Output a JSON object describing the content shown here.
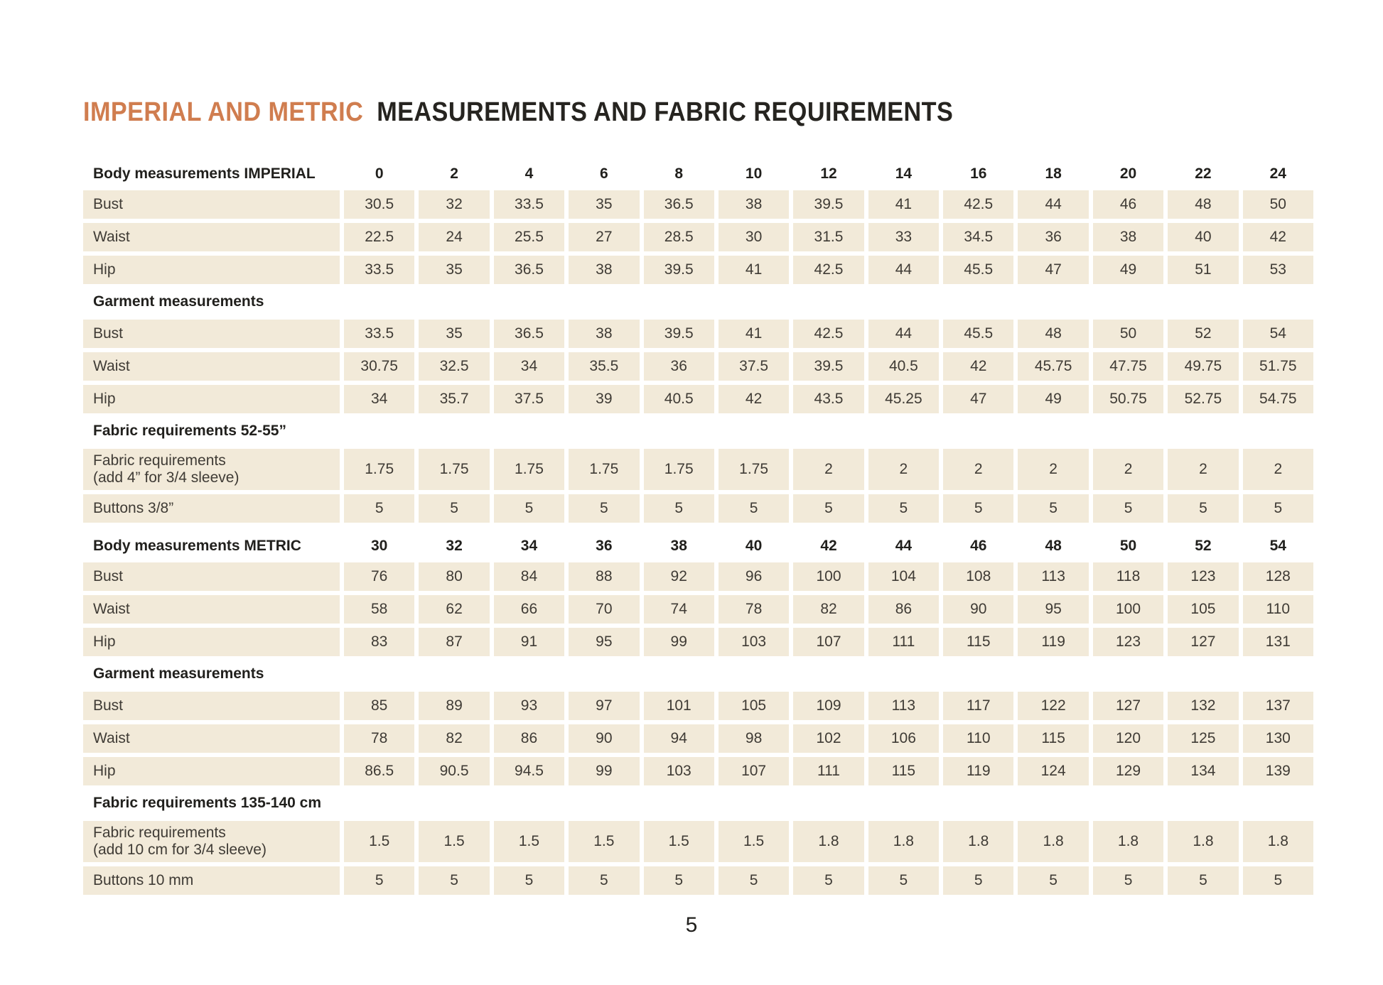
{
  "page": {
    "title_accent": "IMPERIAL AND METRIC",
    "title_rest": "MEASUREMENTS AND FABRIC REQUIREMENTS",
    "page_number": "5"
  },
  "colors": {
    "accent_orange": "#d07d4f",
    "cell_beige": "#f2ead9",
    "text_dark": "#21201d"
  },
  "table": {
    "blocks": [
      {
        "type": "cols",
        "label": "Body measurements IMPERIAL",
        "values": [
          "0",
          "2",
          "4",
          "6",
          "8",
          "10",
          "12",
          "14",
          "16",
          "18",
          "20",
          "22",
          "24"
        ]
      },
      {
        "type": "row",
        "label": "Bust",
        "values": [
          "30.5",
          "32",
          "33.5",
          "35",
          "36.5",
          "38",
          "39.5",
          "41",
          "42.5",
          "44",
          "46",
          "48",
          "50"
        ]
      },
      {
        "type": "row",
        "label": "Waist",
        "values": [
          "22.5",
          "24",
          "25.5",
          "27",
          "28.5",
          "30",
          "31.5",
          "33",
          "34.5",
          "36",
          "38",
          "40",
          "42"
        ]
      },
      {
        "type": "row",
        "label": "Hip",
        "values": [
          "33.5",
          "35",
          "36.5",
          "38",
          "39.5",
          "41",
          "42.5",
          "44",
          "45.5",
          "47",
          "49",
          "51",
          "53"
        ]
      },
      {
        "type": "title",
        "label": "Garment measurements"
      },
      {
        "type": "row",
        "label": "Bust",
        "values": [
          "33.5",
          "35",
          "36.5",
          "38",
          "39.5",
          "41",
          "42.5",
          "44",
          "45.5",
          "48",
          "50",
          "52",
          "54"
        ]
      },
      {
        "type": "row",
        "label": "Waist",
        "values": [
          "30.75",
          "32.5",
          "34",
          "35.5",
          "36",
          "37.5",
          "39.5",
          "40.5",
          "42",
          "45.75",
          "47.75",
          "49.75",
          "51.75"
        ]
      },
      {
        "type": "row",
        "label": "Hip",
        "values": [
          "34",
          "35.7",
          "37.5",
          "39",
          "40.5",
          "42",
          "43.5",
          "45.25",
          "47",
          "49",
          "50.75",
          "52.75",
          "54.75"
        ]
      },
      {
        "type": "title",
        "label": "Fabric requirements 52-55”"
      },
      {
        "type": "row",
        "label": "Fabric requirements",
        "label2": "(add 4” for 3/4 sleeve)",
        "tall": true,
        "values": [
          "1.75",
          "1.75",
          "1.75",
          "1.75",
          "1.75",
          "1.75",
          "2",
          "2",
          "2",
          "2",
          "2",
          "2",
          "2"
        ]
      },
      {
        "type": "row",
        "label": "Buttons 3/8”",
        "values": [
          "5",
          "5",
          "5",
          "5",
          "5",
          "5",
          "5",
          "5",
          "5",
          "5",
          "5",
          "5",
          "5"
        ]
      },
      {
        "type": "cols",
        "label": "Body measurements METRIC",
        "gap_before": true,
        "values": [
          "30",
          "32",
          "34",
          "36",
          "38",
          "40",
          "42",
          "44",
          "46",
          "48",
          "50",
          "52",
          "54"
        ]
      },
      {
        "type": "row",
        "label": "Bust",
        "values": [
          "76",
          "80",
          "84",
          "88",
          "92",
          "96",
          "100",
          "104",
          "108",
          "113",
          "118",
          "123",
          "128"
        ]
      },
      {
        "type": "row",
        "label": "Waist",
        "values": [
          "58",
          "62",
          "66",
          "70",
          "74",
          "78",
          "82",
          "86",
          "90",
          "95",
          "100",
          "105",
          "110"
        ]
      },
      {
        "type": "row",
        "label": "Hip",
        "values": [
          "83",
          "87",
          "91",
          "95",
          "99",
          "103",
          "107",
          "111",
          "115",
          "119",
          "123",
          "127",
          "131"
        ]
      },
      {
        "type": "title",
        "label": "Garment measurements"
      },
      {
        "type": "row",
        "label": "Bust",
        "values": [
          "85",
          "89",
          "93",
          "97",
          "101",
          "105",
          "109",
          "113",
          "117",
          "122",
          "127",
          "132",
          "137"
        ]
      },
      {
        "type": "row",
        "label": "Waist",
        "values": [
          "78",
          "82",
          "86",
          "90",
          "94",
          "98",
          "102",
          "106",
          "110",
          "115",
          "120",
          "125",
          "130"
        ]
      },
      {
        "type": "row",
        "label": "Hip",
        "values": [
          "86.5",
          "90.5",
          "94.5",
          "99",
          "103",
          "107",
          "111",
          "115",
          "119",
          "124",
          "129",
          "134",
          "139"
        ]
      },
      {
        "type": "title",
        "label": "Fabric requirements 135-140 cm"
      },
      {
        "type": "row",
        "label": "Fabric requirements",
        "label2": "(add 10 cm for 3/4 sleeve)",
        "tall": true,
        "values": [
          "1.5",
          "1.5",
          "1.5",
          "1.5",
          "1.5",
          "1.5",
          "1.8",
          "1.8",
          "1.8",
          "1.8",
          "1.8",
          "1.8",
          "1.8"
        ]
      },
      {
        "type": "row",
        "label": "Buttons 10 mm",
        "values": [
          "5",
          "5",
          "5",
          "5",
          "5",
          "5",
          "5",
          "5",
          "5",
          "5",
          "5",
          "5",
          "5"
        ]
      }
    ]
  }
}
